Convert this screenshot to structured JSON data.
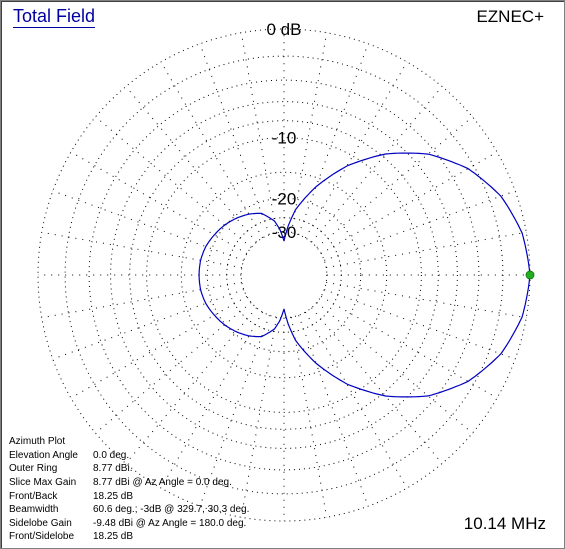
{
  "header": {
    "title": "Total Field",
    "brand": "EZNEC+"
  },
  "frequency": "10.14 MHz",
  "info": {
    "title": "Azimuth Plot",
    "rows": [
      {
        "label": "Elevation Angle",
        "value": "0.0 deg."
      },
      {
        "label": "Outer Ring",
        "value": "8.77 dBi."
      },
      {
        "label": "Slice Max Gain",
        "value": "8.77 dBi @ Az Angle = 0.0 deg."
      },
      {
        "label": "Front/Back",
        "value": "18.25 dB"
      },
      {
        "label": "Beamwidth",
        "value": "60.6 deg.; -3dB @ 329.7, 30.3 deg."
      },
      {
        "label": "Sidelobe Gain",
        "value": "-9.48 dBi @ Az Angle = 180.0 deg."
      },
      {
        "label": "Front/Sidelobe",
        "value": "18.25 dB"
      }
    ]
  },
  "chart_data": {
    "type": "polar",
    "plot": "Azimuth Plot",
    "scale": "ARRL log (0.89 per 2 dB)",
    "rings_db": [
      0,
      -2,
      -4,
      -6,
      -8,
      -10,
      -15,
      -20,
      -25,
      -30
    ],
    "ring_labels": [
      "0 dB",
      "-10",
      "-20",
      "-30"
    ],
    "spokes_deg": 10,
    "grid_style": "dotted",
    "colors": {
      "pattern": "#0000c0",
      "grid": "#000000",
      "marker": "#20b020"
    },
    "max_marker_az_deg": 0,
    "series": [
      {
        "az_deg": [
          0,
          10,
          20,
          30,
          40,
          50,
          60,
          70,
          80,
          85,
          90,
          95,
          100,
          110,
          120,
          130,
          140,
          150,
          160,
          170,
          180,
          190,
          200,
          210,
          220,
          230,
          240,
          250,
          260,
          265,
          270,
          275,
          280,
          290,
          300,
          310,
          320,
          330,
          340,
          350
        ],
        "gain_db": [
          0,
          -0.3,
          -1.1,
          -2.5,
          -4.6,
          -7.6,
          -11.5,
          -16.5,
          -22.5,
          -27.5,
          -34,
          -29,
          -25.8,
          -22.7,
          -21.5,
          -20.6,
          -19.8,
          -19.2,
          -18.6,
          -18.3,
          -18.25,
          -18.3,
          -18.6,
          -19.2,
          -19.8,
          -20.6,
          -21.5,
          -22.7,
          -25.8,
          -29,
          -34,
          -27.5,
          -22.5,
          -16.5,
          -11.5,
          -7.6,
          -4.6,
          -2.5,
          -1.1,
          -0.3
        ]
      }
    ]
  }
}
